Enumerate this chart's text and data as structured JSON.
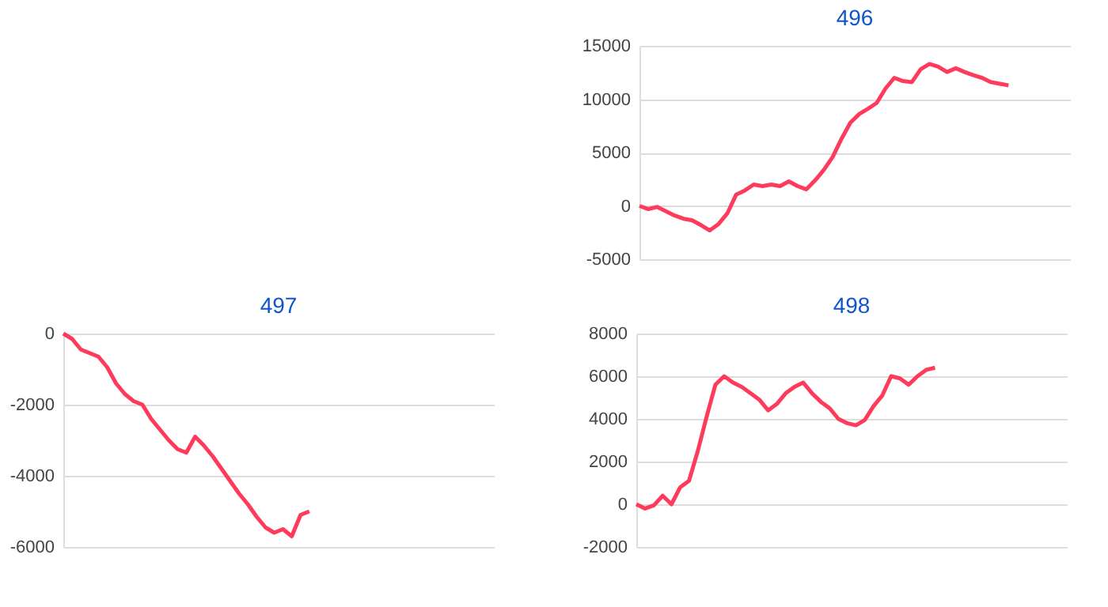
{
  "chart_data": [
    {
      "type": "line",
      "title": "496",
      "categories": [
        null,
        null,
        null,
        null,
        null,
        null,
        null,
        null,
        null,
        null,
        null,
        null,
        null,
        null,
        null,
        null,
        null,
        null,
        null,
        null,
        null,
        null,
        null,
        null,
        null,
        null,
        null,
        null,
        null,
        null,
        null,
        null,
        null,
        null,
        null,
        null,
        null,
        null,
        null,
        null,
        null,
        null,
        null,
        null,
        null,
        null,
        null,
        null,
        null,
        null
      ],
      "series": [
        {
          "color": "#ff3b5c",
          "values": [
            0,
            -300,
            -100,
            -500,
            -900,
            -1200,
            -1350,
            -1800,
            -2300,
            -1700,
            -700,
            1050,
            1450,
            2000,
            1850,
            2000,
            1850,
            2300,
            1850,
            1550,
            2400,
            3400,
            4600,
            6300,
            7800,
            8600,
            9100,
            9650,
            11000,
            12000,
            11700,
            11600,
            12800,
            13300,
            13050,
            12550,
            12900,
            12550,
            12250,
            12000,
            11600,
            11450,
            11300,
            null,
            null,
            null,
            null,
            null,
            null,
            null
          ]
        }
      ],
      "ylim": [
        -5000,
        15000
      ],
      "yticks": [
        -5000,
        0,
        5000,
        10000,
        15000
      ],
      "grid": "y",
      "tick_labels": "y"
    },
    {
      "type": "line",
      "title": "497",
      "categories": [
        null,
        null,
        null,
        null,
        null,
        null,
        null,
        null,
        null,
        null,
        null,
        null,
        null,
        null,
        null,
        null,
        null,
        null,
        null,
        null,
        null,
        null,
        null,
        null,
        null,
        null,
        null,
        null,
        null,
        null,
        null,
        null,
        null,
        null,
        null,
        null,
        null,
        null,
        null,
        null,
        null,
        null,
        null,
        null,
        null,
        null,
        null,
        null,
        null,
        null
      ],
      "series": [
        {
          "color": "#ff3b5c",
          "values": [
            0,
            -150,
            -450,
            -550,
            -650,
            -950,
            -1400,
            -1700,
            -1900,
            -2000,
            -2400,
            -2700,
            -3000,
            -3250,
            -3350,
            -2900,
            -3150,
            -3450,
            -3800,
            -4150,
            -4500,
            -4800,
            -5150,
            -5450,
            -5600,
            -5500,
            -5700,
            -5100,
            -5000,
            null,
            null,
            null,
            null,
            null,
            null,
            null,
            null,
            null,
            null,
            null,
            null,
            null,
            null,
            null,
            null,
            null,
            null,
            null,
            null,
            null
          ]
        }
      ],
      "ylim": [
        -6000,
        0
      ],
      "yticks": [
        -6000,
        -4000,
        -2000,
        0
      ],
      "grid": "y",
      "tick_labels": "y"
    },
    {
      "type": "line",
      "title": "498",
      "categories": [
        null,
        null,
        null,
        null,
        null,
        null,
        null,
        null,
        null,
        null,
        null,
        null,
        null,
        null,
        null,
        null,
        null,
        null,
        null,
        null,
        null,
        null,
        null,
        null,
        null,
        null,
        null,
        null,
        null,
        null,
        null,
        null,
        null,
        null,
        null,
        null,
        null,
        null,
        null,
        null,
        null,
        null,
        null,
        null,
        null,
        null,
        null,
        null,
        null,
        null
      ],
      "series": [
        {
          "color": "#ff3b5c",
          "values": [
            0,
            -200,
            -50,
            400,
            0,
            800,
            1100,
            2500,
            4100,
            5600,
            6000,
            5700,
            5500,
            5200,
            4900,
            4400,
            4700,
            5200,
            5500,
            5700,
            5200,
            4800,
            4500,
            4000,
            3800,
            3700,
            3950,
            4600,
            5100,
            6000,
            5900,
            5600,
            6000,
            6300,
            6400,
            null,
            null,
            null,
            null,
            null,
            null,
            null,
            null,
            null,
            null,
            null,
            null,
            null,
            null,
            null
          ]
        }
      ],
      "ylim": [
        -2000,
        8000
      ],
      "yticks": [
        -2000,
        0,
        2000,
        4000,
        6000,
        8000
      ],
      "grid": "y",
      "tick_labels": "y"
    }
  ]
}
